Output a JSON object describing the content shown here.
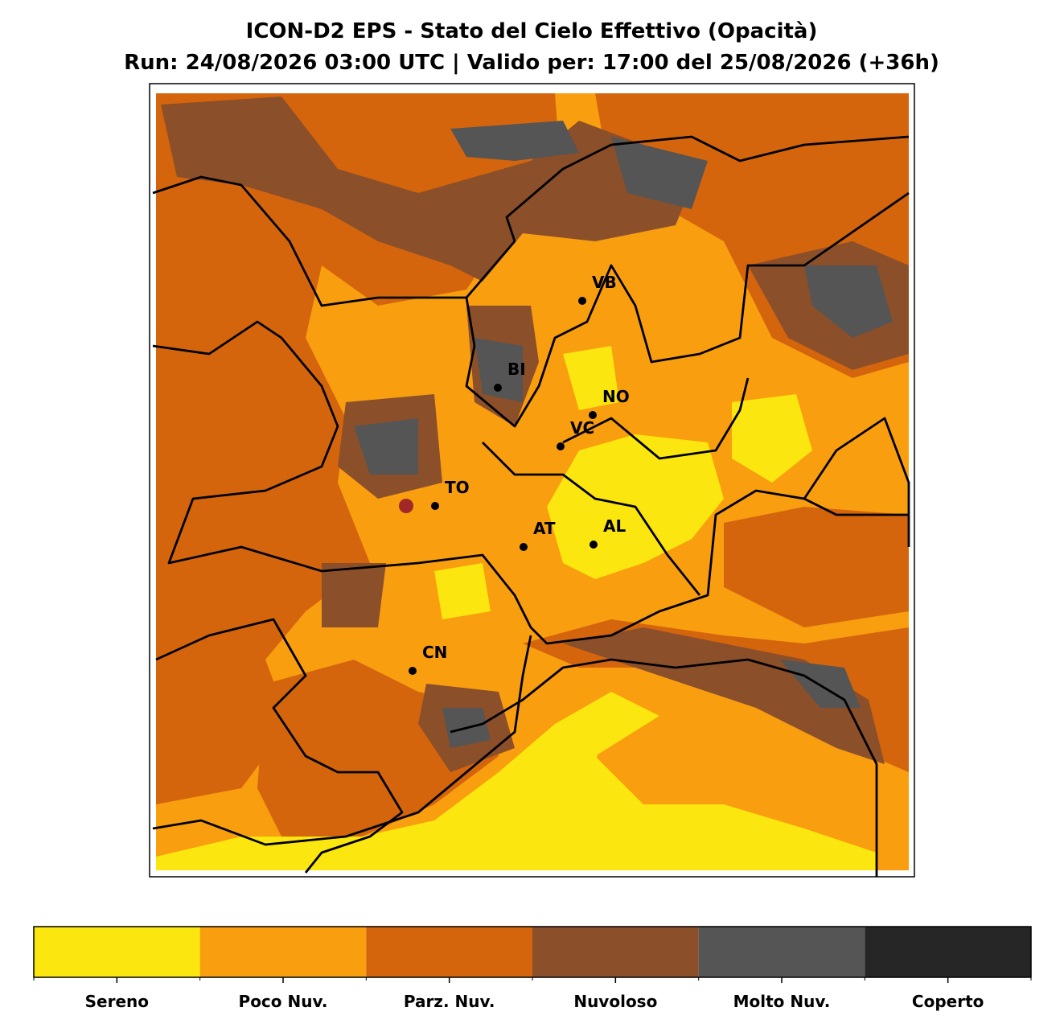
{
  "title": "ICON-D2 EPS - Stato del Cielo Effettivo (Opacità)",
  "subtitle": "Run: 24/08/2026 03:00 UTC | Valido per: 17:00 del 25/08/2026 (+36h)",
  "cities": [
    "VB",
    "BI",
    "NO",
    "VC",
    "TO",
    "AT",
    "AL",
    "CN"
  ],
  "legend": {
    "items": [
      {
        "label": "Sereno",
        "color": "#fbe60f"
      },
      {
        "label": "Poco Nuv.",
        "color": "#f99e0f"
      },
      {
        "label": "Parz. Nuv.",
        "color": "#d4650d"
      },
      {
        "label": "Nuvoloso",
        "color": "#8b4f2a"
      },
      {
        "label": "Molto Nuv.",
        "color": "#555555"
      },
      {
        "label": "Coperto",
        "color": "#262626"
      }
    ]
  }
}
